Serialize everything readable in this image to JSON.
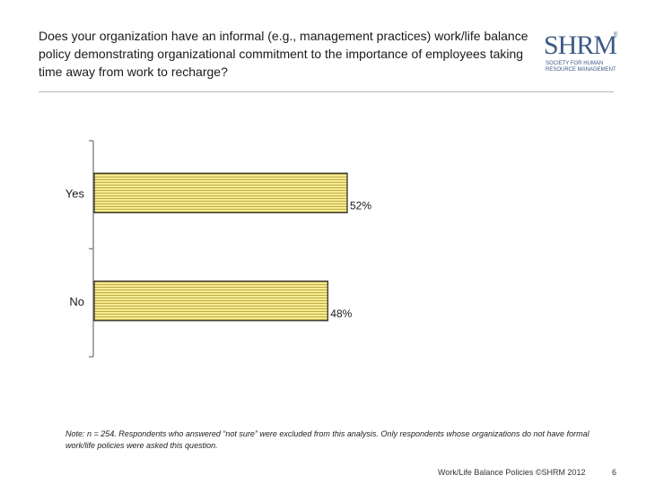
{
  "header": {
    "question": "Does your organization have an informal (e.g., management practices) work/life balance policy demonstrating organizational commitment to the importance of employees taking time away from work to recharge?"
  },
  "logo": {
    "mark": "SHRM",
    "reg": "®",
    "tagline_1": "SOCIETY FOR HUMAN",
    "tagline_2": "RESOURCE MANAGEMENT"
  },
  "chart_data": {
    "type": "bar",
    "orientation": "horizontal",
    "categories": [
      "Yes",
      "No"
    ],
    "values": [
      52,
      48
    ],
    "value_labels": [
      "52%",
      "48%"
    ],
    "xlim": [
      0,
      100
    ],
    "title": "",
    "xlabel": "",
    "ylabel": "",
    "legend": "none",
    "bar_color": "#f3e88a",
    "bar_stripe_color": "#b8a23a"
  },
  "note": "Note: n = 254. Respondents who answered “not sure” were excluded from this analysis. Only respondents whose organizations do not have formal work/life policies were asked this question.",
  "footer": {
    "text": "Work/Life Balance Policies ©SHRM 2012",
    "page": "6"
  },
  "colors": {
    "brand": "#3e5a86",
    "rule": "#b8b8b8"
  }
}
